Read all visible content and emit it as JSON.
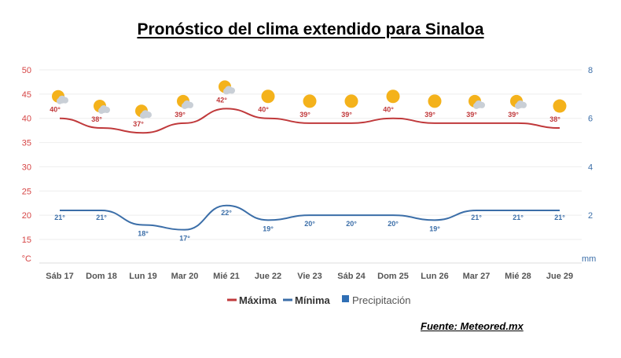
{
  "title": "Pronóstico del clima extendido para Sinaloa",
  "source": "Fuente: Meteored.mx",
  "colors": {
    "max_line": "#c0393b",
    "min_line": "#3b6ea8",
    "precip": "#2f6fb5",
    "axis_left": "#d64545",
    "axis_right": "#3b6ea8",
    "grid": "#eeeeee",
    "sun": "#f4b21b",
    "cloud": "#c9cfd6"
  },
  "chart_data": {
    "type": "line",
    "categories": [
      "Sáb 17",
      "Dom 18",
      "Lun 19",
      "Mar 20",
      "Mié 21",
      "Jue 22",
      "Vie 23",
      "Sáb 24",
      "Dom 25",
      "Lun 26",
      "Mar 27",
      "Mié 28",
      "Jue 29"
    ],
    "series": [
      {
        "name": "Máxima",
        "values": [
          40,
          38,
          37,
          39,
          42,
          40,
          39,
          39,
          40,
          39,
          39,
          39,
          38
        ],
        "labels": [
          "40°",
          "38°",
          "37°",
          "39°",
          "42°",
          "40°",
          "39°",
          "39°",
          "40°",
          "39°",
          "39°",
          "39°",
          "38°"
        ]
      },
      {
        "name": "Mínima",
        "values": [
          21,
          21,
          18,
          17,
          22,
          19,
          20,
          20,
          20,
          19,
          21,
          21,
          21
        ],
        "labels": [
          "21°",
          "21°",
          "18°",
          "17°",
          "22°",
          "19°",
          "20°",
          "20°",
          "20°",
          "19°",
          "21°",
          "21°",
          "21°"
        ]
      },
      {
        "name": "Precipitación",
        "values": [
          0,
          0,
          0,
          0,
          0,
          0,
          0,
          0,
          0,
          0,
          0,
          0,
          0
        ]
      }
    ],
    "weather_icons": [
      "partly-sunny-icon",
      "partly-sunny-icon",
      "partly-sunny-icon",
      "partly-sunny-icon",
      "partly-sunny-icon",
      "sun-icon",
      "sun-icon",
      "sun-icon",
      "sun-icon",
      "sun-icon",
      "partly-sunny-icon",
      "partly-sunny-icon",
      "sun-icon"
    ],
    "y_left": {
      "ticks": [
        "50",
        "45",
        "40",
        "35",
        "30",
        "25",
        "20",
        "15"
      ],
      "unit": "°C",
      "lim": [
        10,
        50
      ]
    },
    "y_right": {
      "ticks": [
        "8",
        "6",
        "4",
        "2"
      ],
      "unit": "mm",
      "lim": [
        0,
        8
      ]
    },
    "legend": [
      "Máxima",
      "Mínima",
      "Precipitación"
    ]
  }
}
